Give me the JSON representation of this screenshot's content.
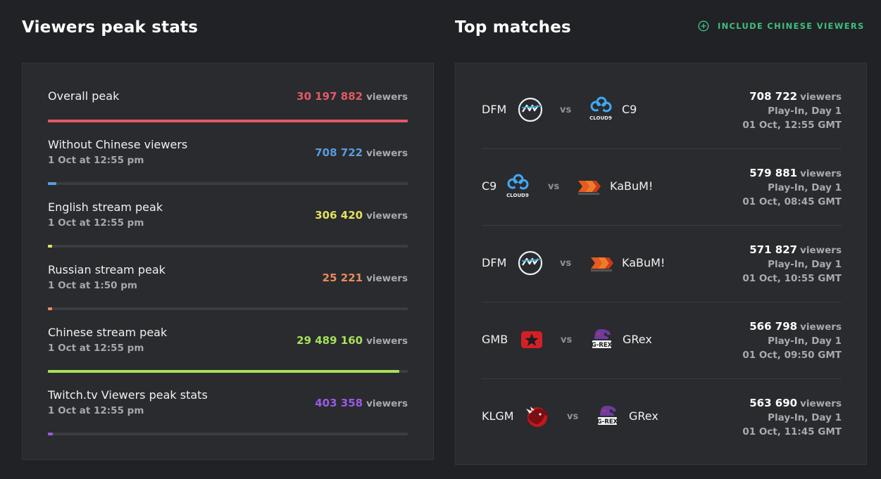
{
  "left": {
    "title": "Viewers peak stats"
  },
  "right": {
    "title": "Top matches",
    "toggle_label": "INCLUDE CHINESE VIEWERS"
  },
  "colors": {
    "overall": "#e05a65",
    "without_chinese": "#5b9bde",
    "english": "#e4e05a",
    "russian": "#ea8a5f",
    "chinese": "#a6e05a",
    "twitch": "#9a5ae8",
    "toggle_green": "#3fbf7f"
  },
  "stats": [
    {
      "label": "Overall peak",
      "date": "",
      "value": "30 197 882",
      "unit": "viewers",
      "fraction": 1.0
    },
    {
      "label": "Without Chinese viewers",
      "date": "1 Oct at 12:55 pm",
      "value": "708 722",
      "unit": "viewers",
      "fraction": 0.0235
    },
    {
      "label": "English stream peak",
      "date": "1 Oct at 12:55 pm",
      "value": "306 420",
      "unit": "viewers",
      "fraction": 0.0101
    },
    {
      "label": "Russian stream peak",
      "date": "1 Oct at 1:50 pm",
      "value": "25 221",
      "unit": "viewers",
      "fraction": 0.0008
    },
    {
      "label": "Chinese stream peak",
      "date": "1 Oct at 12:55 pm",
      "value": "29 489 160",
      "unit": "viewers",
      "fraction": 0.9765
    },
    {
      "label": "Twitch.tv Viewers peak stats",
      "date": "1 Oct at 12:55 pm",
      "value": "403 358",
      "unit": "viewers",
      "fraction": 0.0134
    }
  ],
  "matches": [
    {
      "team1": "DFM",
      "team1_logo": "dfm-logo-icon",
      "vs": "vs",
      "team2": "C9",
      "team2_logo": "cloud9-logo-icon",
      "viewers": "708 722",
      "unit": "viewers",
      "stage": "Play-In, Day 1",
      "time": "01 Oct, 12:55 GMT"
    },
    {
      "team1": "C9",
      "team1_logo": "cloud9-logo-icon",
      "vs": "vs",
      "team2": "KaBuM!",
      "team2_logo": "kabum-logo-icon",
      "viewers": "579 881",
      "unit": "viewers",
      "stage": "Play-In, Day 1",
      "time": "01 Oct, 08:45 GMT"
    },
    {
      "team1": "DFM",
      "team1_logo": "dfm-logo-icon",
      "vs": "vs",
      "team2": "KaBuM!",
      "team2_logo": "kabum-logo-icon",
      "viewers": "571 827",
      "unit": "viewers",
      "stage": "Play-In, Day 1",
      "time": "01 Oct, 10:55 GMT"
    },
    {
      "team1": "GMB",
      "team1_logo": "gambit-logo-icon",
      "vs": "vs",
      "team2": "GRex",
      "team2_logo": "grex-logo-icon",
      "viewers": "566 798",
      "unit": "viewers",
      "stage": "Play-In, Day 1",
      "time": "01 Oct, 09:50 GMT"
    },
    {
      "team1": "KLGM",
      "team1_logo": "kaliningrad-logo-icon",
      "vs": "vs",
      "team2": "GRex",
      "team2_logo": "grex-logo-icon",
      "viewers": "563 690",
      "unit": "viewers",
      "stage": "Play-In, Day 1",
      "time": "01 Oct, 11:45 GMT"
    }
  ],
  "logo_text": {
    "cloud9": "CLOUD9",
    "grex": "G-REX"
  }
}
